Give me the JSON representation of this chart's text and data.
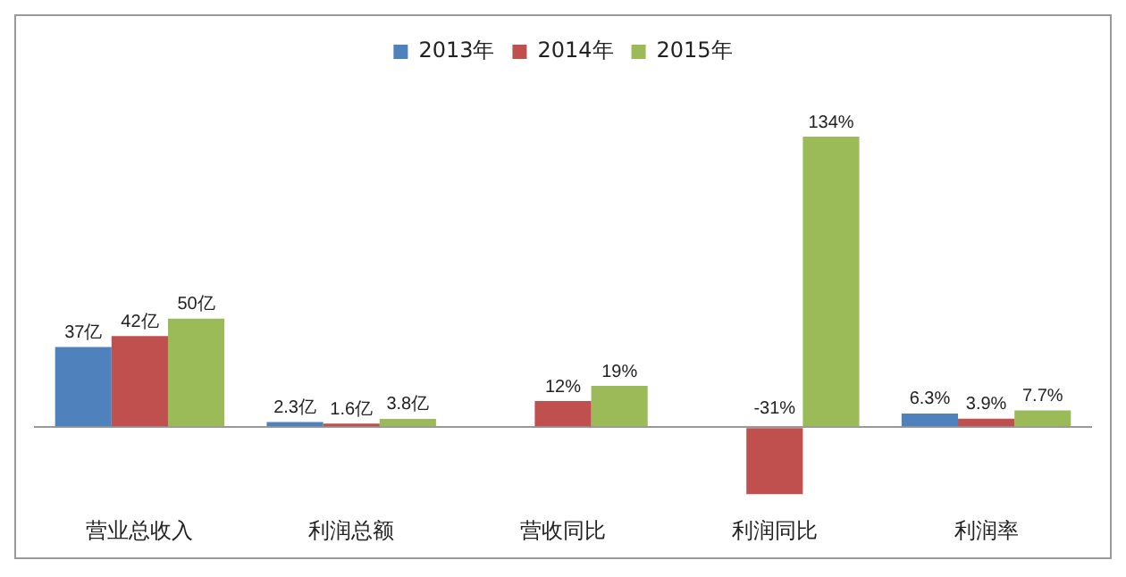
{
  "chart_data": {
    "type": "bar",
    "categories": [
      "营业总收入",
      "利润总额",
      "营收同比",
      "利润同比",
      "利润率"
    ],
    "series": [
      {
        "name": "2013年",
        "color": "#4f81bd",
        "values": [
          37,
          2.3,
          null,
          null,
          6.3
        ],
        "value_labels": [
          "37亿",
          "2.3亿",
          null,
          null,
          "6.3%"
        ]
      },
      {
        "name": "2014年",
        "color": "#c0504d",
        "values": [
          42,
          1.6,
          12,
          -31,
          3.9
        ],
        "value_labels": [
          "42亿",
          "1.6亿",
          "12%",
          "-31%",
          "3.9%"
        ]
      },
      {
        "name": "2015年",
        "color": "#9bbb59",
        "values": [
          50,
          3.8,
          19,
          134,
          7.7
        ],
        "value_labels": [
          "50亿",
          "3.8亿",
          "19%",
          "134%",
          "7.7%"
        ]
      }
    ],
    "legend": "top",
    "grid": false,
    "tick_labels": "x"
  }
}
